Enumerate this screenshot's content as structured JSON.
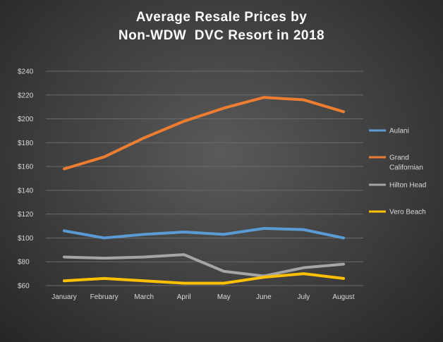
{
  "chart_data": {
    "type": "line",
    "title_line1": "Average Resale Prices by",
    "title_line2": "Non-WDW  DVC Resort in 2018",
    "categories": [
      "January",
      "February",
      "March",
      "April",
      "May",
      "June",
      "July",
      "August"
    ],
    "yticks": [
      "$60",
      "$80",
      "$100",
      "$120",
      "$140",
      "$160",
      "$180",
      "$200",
      "$220",
      "$240"
    ],
    "ylim": [
      60,
      240
    ],
    "grid": true,
    "legend_placement": "right",
    "series": [
      {
        "name": "Aulani",
        "color": "#5b9bd5",
        "values": [
          106,
          100,
          103,
          105,
          103,
          108,
          107,
          100
        ]
      },
      {
        "name": "Grand Californian",
        "name_lines": [
          "Grand",
          "Californian"
        ],
        "color": "#ed7d31",
        "values": [
          158,
          168,
          184,
          198,
          209,
          218,
          216,
          206
        ]
      },
      {
        "name": "Hilton Head",
        "color": "#a5a5a5",
        "values": [
          84,
          83,
          84,
          86,
          72,
          68,
          75,
          78
        ]
      },
      {
        "name": "Vero Beach",
        "color": "#ffc000",
        "values": [
          64,
          66,
          64,
          62,
          62,
          67,
          70,
          66
        ]
      }
    ]
  }
}
